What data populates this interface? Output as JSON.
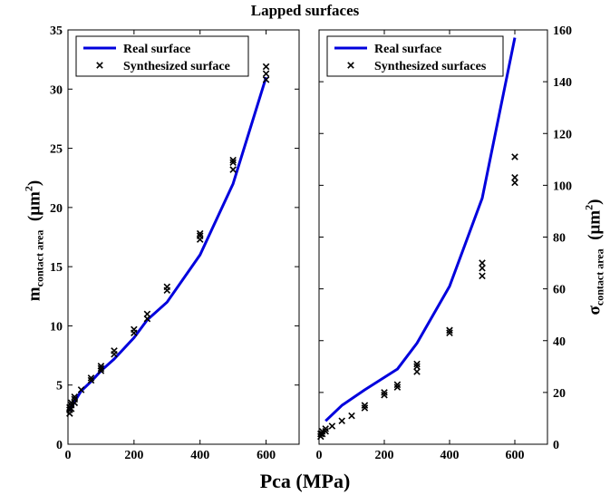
{
  "title": "Lapped surfaces",
  "xlabel": "Pca (MPa)",
  "chart_data": [
    {
      "type": "line",
      "ylabel": {
        "base": "m",
        "sub": "contact area",
        "unit_pre": "(μm",
        "unit_sup": "2",
        "unit_post": ")"
      },
      "xlim": [
        0,
        700
      ],
      "ylim": [
        0,
        35
      ],
      "xticks": [
        0,
        200,
        400,
        600
      ],
      "yticks": [
        0,
        5,
        10,
        15,
        20,
        25,
        30,
        35
      ],
      "legend_position": "top-left",
      "series": [
        {
          "name": "Real surface",
          "kind": "line",
          "color": "#0000dd",
          "x": [
            5,
            10,
            20,
            40,
            70,
            100,
            140,
            200,
            240,
            300,
            400,
            500,
            600
          ],
          "y": [
            2.8,
            3.1,
            3.6,
            4.5,
            5.3,
            6.2,
            7.2,
            9.0,
            10.5,
            12.0,
            16.0,
            22.0,
            31.0
          ]
        },
        {
          "name": "Synthesized surface",
          "kind": "scatter",
          "color": "#000000",
          "x": [
            5,
            5,
            5,
            10,
            10,
            10,
            20,
            20,
            20,
            40,
            70,
            70,
            100,
            100,
            100,
            140,
            140,
            200,
            200,
            240,
            240,
            300,
            300,
            400,
            400,
            400,
            500,
            500,
            500,
            600,
            600,
            600
          ],
          "y": [
            2.6,
            2.9,
            3.1,
            3.0,
            3.3,
            3.5,
            3.5,
            3.8,
            4.0,
            4.6,
            5.4,
            5.6,
            6.2,
            6.4,
            6.6,
            7.6,
            7.9,
            9.4,
            9.7,
            10.6,
            11.0,
            13.0,
            13.3,
            17.3,
            17.6,
            17.8,
            23.2,
            23.8,
            24.0,
            30.8,
            31.3,
            31.9
          ]
        }
      ]
    },
    {
      "type": "line",
      "ylabel": {
        "base": "σ",
        "sub": "contact area",
        "unit_pre": "(μm",
        "unit_sup": "2",
        "unit_post": ")"
      },
      "xlim": [
        0,
        700
      ],
      "ylim": [
        0,
        160
      ],
      "xticks": [
        0,
        200,
        400,
        600
      ],
      "yticks": [
        0,
        20,
        40,
        60,
        80,
        100,
        120,
        140,
        160
      ],
      "yaxis_side": "right",
      "legend_position": "top-left",
      "series": [
        {
          "name": "Real surface",
          "kind": "line",
          "color": "#0000dd",
          "x": [
            20,
            70,
            140,
            240,
            300,
            400,
            500,
            600
          ],
          "y": [
            9,
            15,
            21,
            29,
            39,
            61,
            95,
            157
          ]
        },
        {
          "name": "Synthesized surfaces",
          "kind": "scatter",
          "color": "#000000",
          "x": [
            5,
            5,
            10,
            10,
            20,
            20,
            40,
            70,
            100,
            140,
            140,
            200,
            200,
            240,
            240,
            300,
            300,
            300,
            400,
            400,
            500,
            500,
            500,
            600,
            600,
            600
          ],
          "y": [
            3,
            4,
            4,
            5,
            5,
            6,
            7,
            9,
            11,
            14,
            15,
            19,
            20,
            22,
            23,
            28,
            30,
            31,
            43,
            44,
            65,
            68,
            70,
            101,
            103,
            111
          ]
        }
      ]
    }
  ]
}
